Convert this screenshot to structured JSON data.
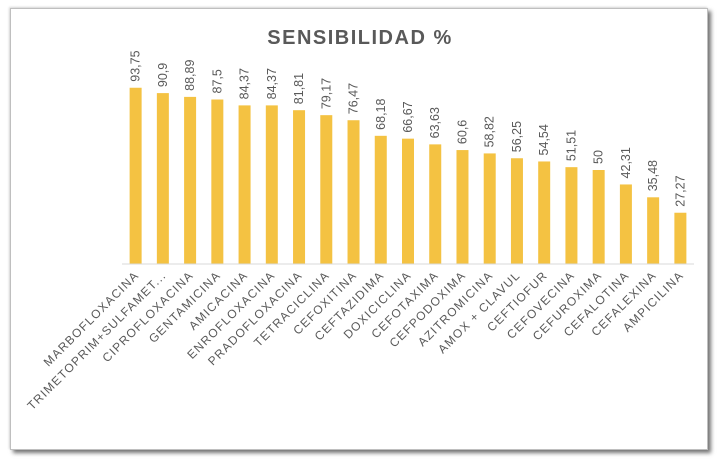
{
  "chart_data": {
    "type": "bar",
    "title": "SENSIBILIDAD %",
    "xlabel": "",
    "ylabel": "",
    "ylim": [
      0,
      100
    ],
    "grid": false,
    "bar_color": "#F4C242",
    "categories": [
      "MARBOFLOXACINA",
      "TRIMETOPRIM+SULFAMET...",
      "CIPROFLOXACINA",
      "GENTAMICINA",
      "AMICACINA",
      "ENROFLOXACINA",
      "PRADOFLOXACINA",
      "TETRACICLINA",
      "CEFOXITINA",
      "CEFTAZIDIMA",
      "DOXICICLINA",
      "CEFOTAXIMA",
      "CEFPODOXIMA",
      "AZITROMICINA",
      "AMOX + CLAVUL",
      "CEFTIOFUR",
      "CEFOVECINA",
      "CEFUROXIMA",
      "CEFALOTINA",
      "CEFALEXINA",
      "AMPICILINA"
    ],
    "values": [
      93.75,
      90.9,
      88.89,
      87.5,
      84.37,
      84.37,
      81.81,
      79.17,
      76.47,
      68.18,
      66.67,
      63.63,
      60.6,
      58.82,
      56.25,
      54.54,
      51.51,
      50,
      42.31,
      35.48,
      27.27
    ],
    "data_labels": [
      "93,75",
      "90,9",
      "88,89",
      "87,5",
      "84,37",
      "84,37",
      "81,81",
      "79,17",
      "76,47",
      "68,18",
      "66,67",
      "63,63",
      "60,6",
      "58,82",
      "56,25",
      "54,54",
      "51,51",
      "50",
      "42,31",
      "35,48",
      "27,27"
    ]
  }
}
